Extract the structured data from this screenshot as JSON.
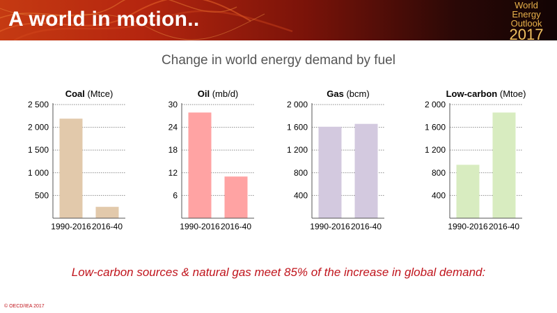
{
  "header": {
    "title": "A world in motion..",
    "logo": {
      "line1": "World",
      "line2": "Energy",
      "line3": "Outlook",
      "line4": "2017"
    }
  },
  "subtitle": "Change in world energy demand by fuel",
  "conclusion": "Low-carbon sources & natural gas meet 85% of the increase in global demand:",
  "copyright": "© OECD/IEA 2017",
  "colors": {
    "coal": "#e2c9ab",
    "oil": "#ffa3a3",
    "gas": "#d3c9df",
    "lowcarbon": "#d8ecc0",
    "accent": "#c0141c"
  },
  "chart_data": [
    {
      "type": "bar",
      "title_bold": "Coal",
      "title_unit": " (Mtce)",
      "categories": [
        "1990-2016",
        "2016-40"
      ],
      "values": [
        2190,
        250
      ],
      "ylim": [
        0,
        2500
      ],
      "yticks": [
        500,
        1000,
        1500,
        2000,
        2500
      ],
      "ytick_labels": [
        "500",
        "1 000",
        "1 500",
        "2 000",
        "2 500"
      ],
      "grid": true,
      "color": "#e2c9ab"
    },
    {
      "type": "bar",
      "title_bold": "Oil",
      "title_unit": " (mb/d)",
      "categories": [
        "1990-2016",
        "2016-40"
      ],
      "values": [
        27.9,
        11
      ],
      "ylim": [
        0,
        30
      ],
      "yticks": [
        6,
        12,
        18,
        24,
        30
      ],
      "ytick_labels": [
        "6",
        "12",
        "18",
        "24",
        "30"
      ],
      "grid": true,
      "color": "#ffa3a3"
    },
    {
      "type": "bar",
      "title_bold": "Gas",
      "title_unit": " (bcm)",
      "categories": [
        "1990-2016",
        "2016-40"
      ],
      "values": [
        1610,
        1660
      ],
      "ylim": [
        0,
        2000
      ],
      "yticks": [
        400,
        800,
        1200,
        1600,
        2000
      ],
      "ytick_labels": [
        "400",
        "800",
        "1 200",
        "1 600",
        "2 000"
      ],
      "grid": true,
      "color": "#d3c9df"
    },
    {
      "type": "bar",
      "title_bold": "Low-carbon",
      "title_unit": " (Mtoe)",
      "categories": [
        "1990-2016",
        "2016-40"
      ],
      "values": [
        940,
        1860
      ],
      "ylim": [
        0,
        2000
      ],
      "yticks": [
        400,
        800,
        1200,
        1600,
        2000
      ],
      "ytick_labels": [
        "400",
        "800",
        "1 200",
        "1 600",
        "2 000"
      ],
      "grid": true,
      "color": "#d8ecc0"
    }
  ]
}
